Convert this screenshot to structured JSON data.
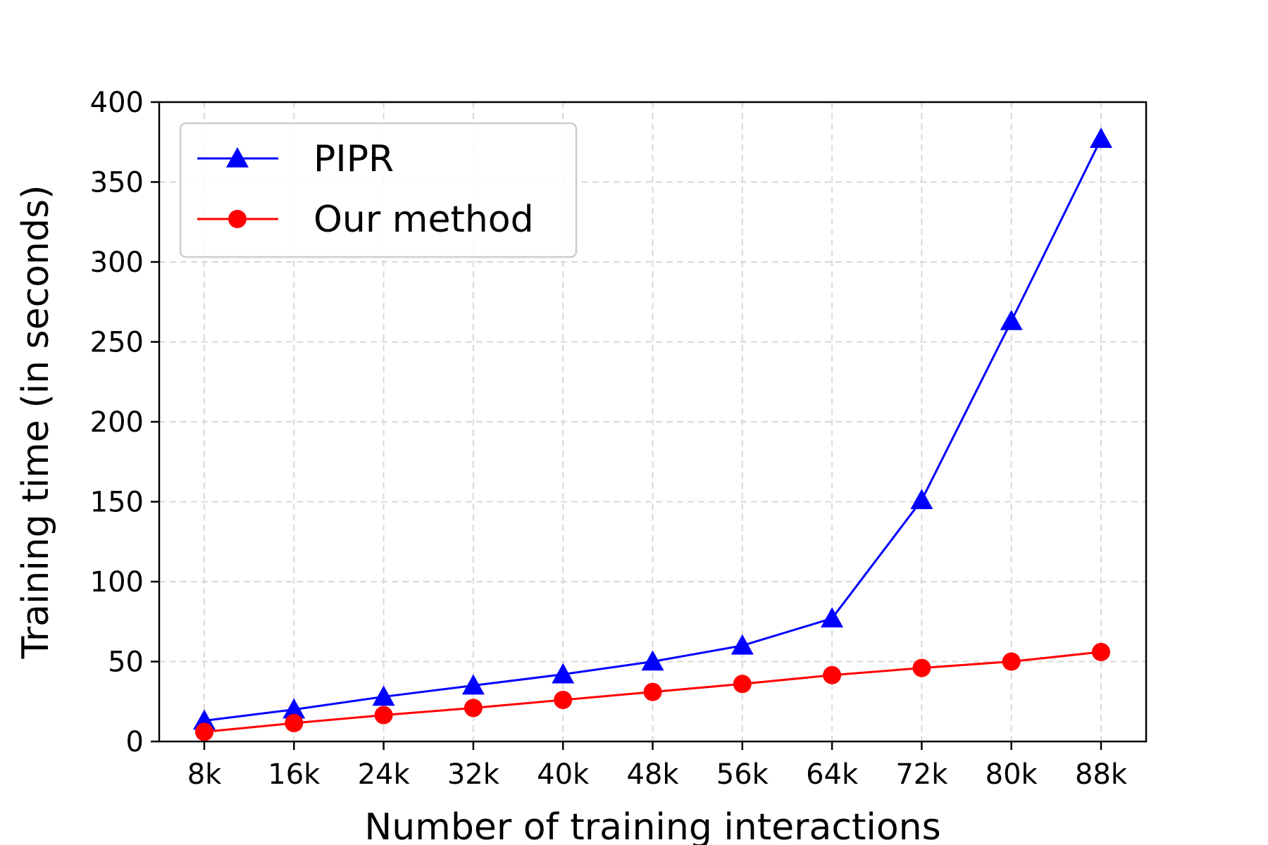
{
  "chart_data": {
    "type": "line",
    "title": "",
    "xlabel": "Number of training interactions",
    "ylabel": "Training time (in seconds)",
    "categories": [
      "8k",
      "16k",
      "24k",
      "32k",
      "40k",
      "48k",
      "56k",
      "64k",
      "72k",
      "80k",
      "88k"
    ],
    "ylim": [
      0,
      400
    ],
    "yticks": [
      0,
      50,
      100,
      150,
      200,
      250,
      300,
      350,
      400
    ],
    "grid": true,
    "legend_position": "top-left",
    "series": [
      {
        "name": "PIPR",
        "color": "#0000ff",
        "marker": "triangle",
        "values": [
          13,
          20,
          28,
          35,
          42,
          50,
          60,
          77,
          151,
          263,
          377
        ]
      },
      {
        "name": "Our method",
        "color": "#ff0000",
        "marker": "circle",
        "values": [
          6,
          11.5,
          16.5,
          21,
          26,
          31,
          36,
          41.5,
          46,
          50,
          56
        ]
      }
    ]
  }
}
